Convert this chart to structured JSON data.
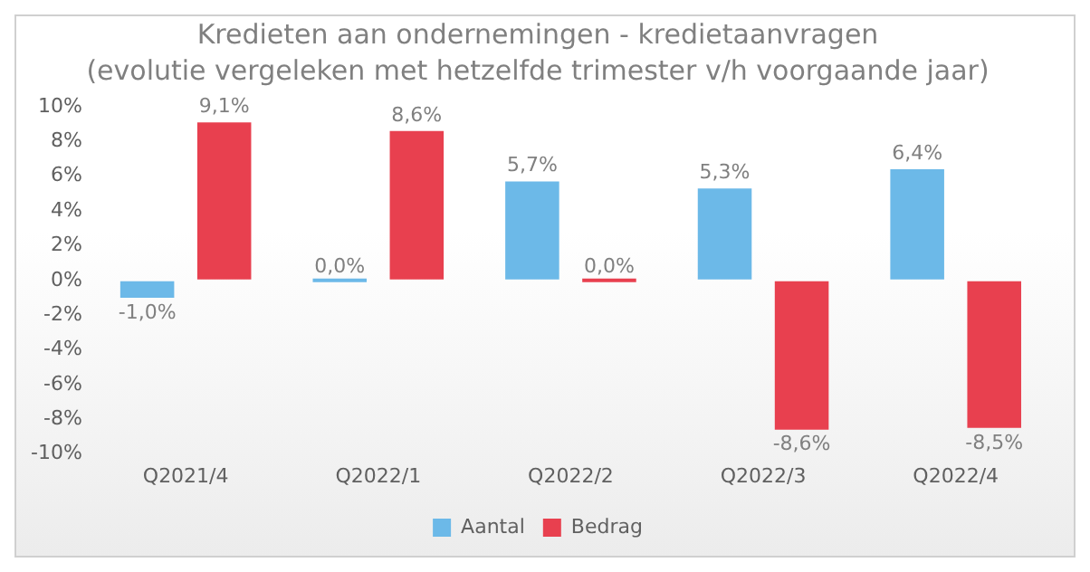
{
  "chart_data": {
    "type": "bar",
    "title": "Kredieten aan ondernemingen - kredietaanvragen",
    "subtitle": "(evolutie vergeleken met hetzelfde trimester v/h voorgaande jaar)",
    "categories": [
      "Q2021/4",
      "Q2022/1",
      "Q2022/2",
      "Q2022/3",
      "Q2022/4"
    ],
    "series": [
      {
        "name": "Aantal",
        "color": "#6cb9e8",
        "values": [
          -1.0,
          0.0,
          5.7,
          5.3,
          6.4
        ],
        "value_labels": [
          "-1,0%",
          "0,0%",
          "5,7%",
          "5,3%",
          "6,4%"
        ]
      },
      {
        "name": "Bedrag",
        "color": "#e8404f",
        "values": [
          9.1,
          8.6,
          0.0,
          -8.6,
          -8.5
        ],
        "value_labels": [
          "9,1%",
          "8,6%",
          "0,0%",
          "-8,6%",
          "-8,5%"
        ]
      }
    ],
    "ylim": [
      -10,
      10
    ],
    "yticks": [
      {
        "value": -10,
        "label": "-10%"
      },
      {
        "value": -8,
        "label": "-8%"
      },
      {
        "value": -6,
        "label": "-6%"
      },
      {
        "value": -4,
        "label": "-4%"
      },
      {
        "value": -2,
        "label": "-2%"
      },
      {
        "value": 0,
        "label": "0%"
      },
      {
        "value": 2,
        "label": "2%"
      },
      {
        "value": 4,
        "label": "4%"
      },
      {
        "value": 6,
        "label": "6%"
      },
      {
        "value": 8,
        "label": "8%"
      },
      {
        "value": 10,
        "label": "10%"
      }
    ],
    "grid": false,
    "legend": "bottom"
  }
}
